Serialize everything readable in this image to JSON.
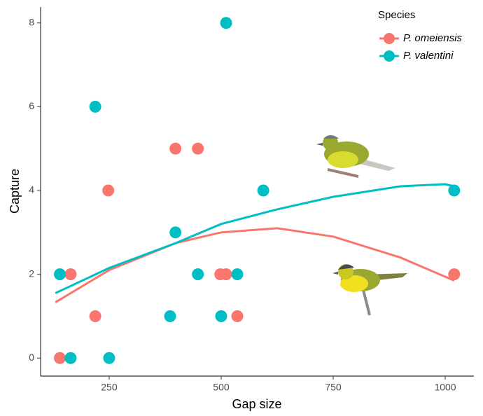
{
  "chart_data": {
    "type": "scatter",
    "x_label": "Gap size",
    "y_label": "Capture",
    "legend_title": "Species",
    "legend": "top-right",
    "xlim": [
      97,
      1064
    ],
    "ylim": [
      -0.43,
      8.38
    ],
    "xticks": [
      250,
      500,
      750,
      1000
    ],
    "yticks": [
      0,
      2,
      4,
      6,
      8
    ],
    "series": [
      {
        "name": "P. omeiensis",
        "color": "#f8766d",
        "x": [
          140,
          164,
          219,
          248,
          398,
          448,
          498,
          511,
          536,
          1020
        ],
        "values": [
          0,
          2,
          1,
          4,
          5,
          5,
          2,
          2,
          1,
          2
        ],
        "fit": {
          "x": [
            130,
            250,
            400,
            500,
            625,
            750,
            900,
            1020
          ],
          "y": [
            1.33,
            2.1,
            2.75,
            3.0,
            3.1,
            2.9,
            2.4,
            1.85
          ]
        }
      },
      {
        "name": "P. valentini",
        "color": "#00bfc4",
        "x": [
          140,
          164,
          219,
          250,
          386,
          398,
          448,
          500,
          511,
          536,
          594,
          1020
        ],
        "values": [
          2,
          0,
          6,
          0,
          1,
          3,
          2,
          1,
          8,
          2,
          4,
          4
        ],
        "fit": {
          "x": [
            130,
            250,
            400,
            500,
            625,
            750,
            900,
            1000,
            1020
          ],
          "y": [
            1.55,
            2.15,
            2.75,
            3.2,
            3.55,
            3.85,
            4.1,
            4.15,
            4.1
          ]
        }
      }
    ]
  }
}
